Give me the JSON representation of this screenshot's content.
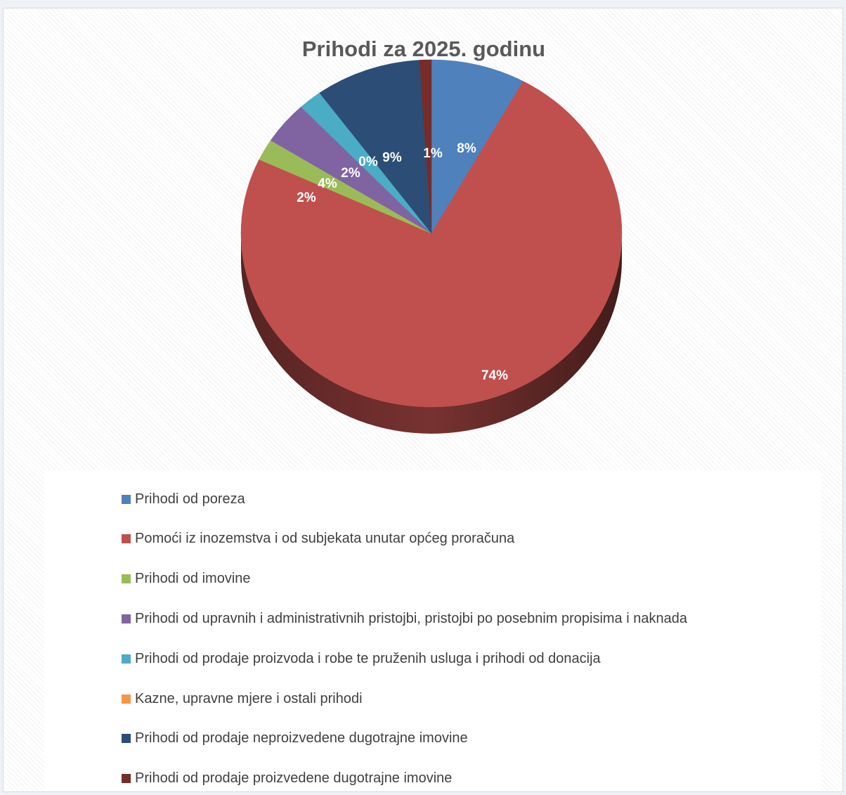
{
  "chart_data": {
    "type": "pie",
    "title": "Prihodi za 2025. godinu",
    "style": "3d",
    "slices": [
      {
        "name": "Prihodi od poreza",
        "value": 8,
        "label": "8%",
        "color": "#4F81BD"
      },
      {
        "name": "Pomoći iz inozemstva i od subjekata unutar općeg proračuna",
        "value": 74,
        "label": "74%",
        "color": "#C0504D"
      },
      {
        "name": "Prihodi od imovine",
        "value": 2,
        "label": "2%",
        "color": "#9BBB59"
      },
      {
        "name": "Prihodi od upravnih i administrativnih pristojbi, pristojbi po posebnim propisima i naknada",
        "value": 4,
        "label": "4%",
        "color": "#8064A2"
      },
      {
        "name": "Prihodi od prodaje proizvoda i robe te pruženih usluga i prihodi od donacija",
        "value": 2,
        "label": "2%",
        "color": "#4BACC6"
      },
      {
        "name": "Kazne, upravne mjere i ostali prihodi",
        "value": 0,
        "label": "0%",
        "color": "#F79646"
      },
      {
        "name": "Prihodi od prodaje neproizvedene dugotrajne imovine",
        "value": 9,
        "label": "9%",
        "color": "#2C4D75"
      },
      {
        "name": "Prihodi od prodaje proizvedene dugotrajne imovine",
        "value": 1,
        "label": "1%",
        "color": "#772C2A"
      }
    ],
    "legend_position": "bottom"
  }
}
